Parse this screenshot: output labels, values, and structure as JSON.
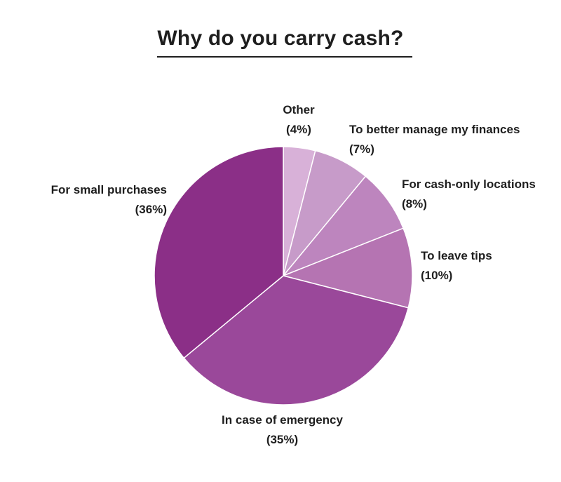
{
  "title": "Why do you carry cash?",
  "colors": {
    "small_purchases": "#8b2f87",
    "emergency": "#9a489a",
    "tips": "#b574b2",
    "cash_only": "#bd85be",
    "finances": "#c79bc9",
    "other": "#d8b1d8",
    "background": "#ffffff",
    "text": "#1e1e1e"
  },
  "chart_data": {
    "type": "pie",
    "title": "Why do you carry cash?",
    "slices": [
      {
        "label": "Other",
        "value": 4,
        "value_label": "(4%)",
        "color": "#d8b1d8"
      },
      {
        "label": "To better manage my finances",
        "value": 7,
        "value_label": "(7%)",
        "color": "#c79bc9"
      },
      {
        "label": "For cash-only locations",
        "value": 8,
        "value_label": "(8%)",
        "color": "#bd85be"
      },
      {
        "label": "To leave tips",
        "value": 10,
        "value_label": "(10%)",
        "color": "#b574b2"
      },
      {
        "label": "In case of emergency",
        "value": 35,
        "value_label": "(35%)",
        "color": "#9a489a"
      },
      {
        "label": "For small purchases",
        "value": 36,
        "value_label": "(36%)",
        "color": "#8b2f87"
      }
    ],
    "start_angle": "12 o'clock",
    "direction": "clockwise",
    "legend": "none"
  }
}
